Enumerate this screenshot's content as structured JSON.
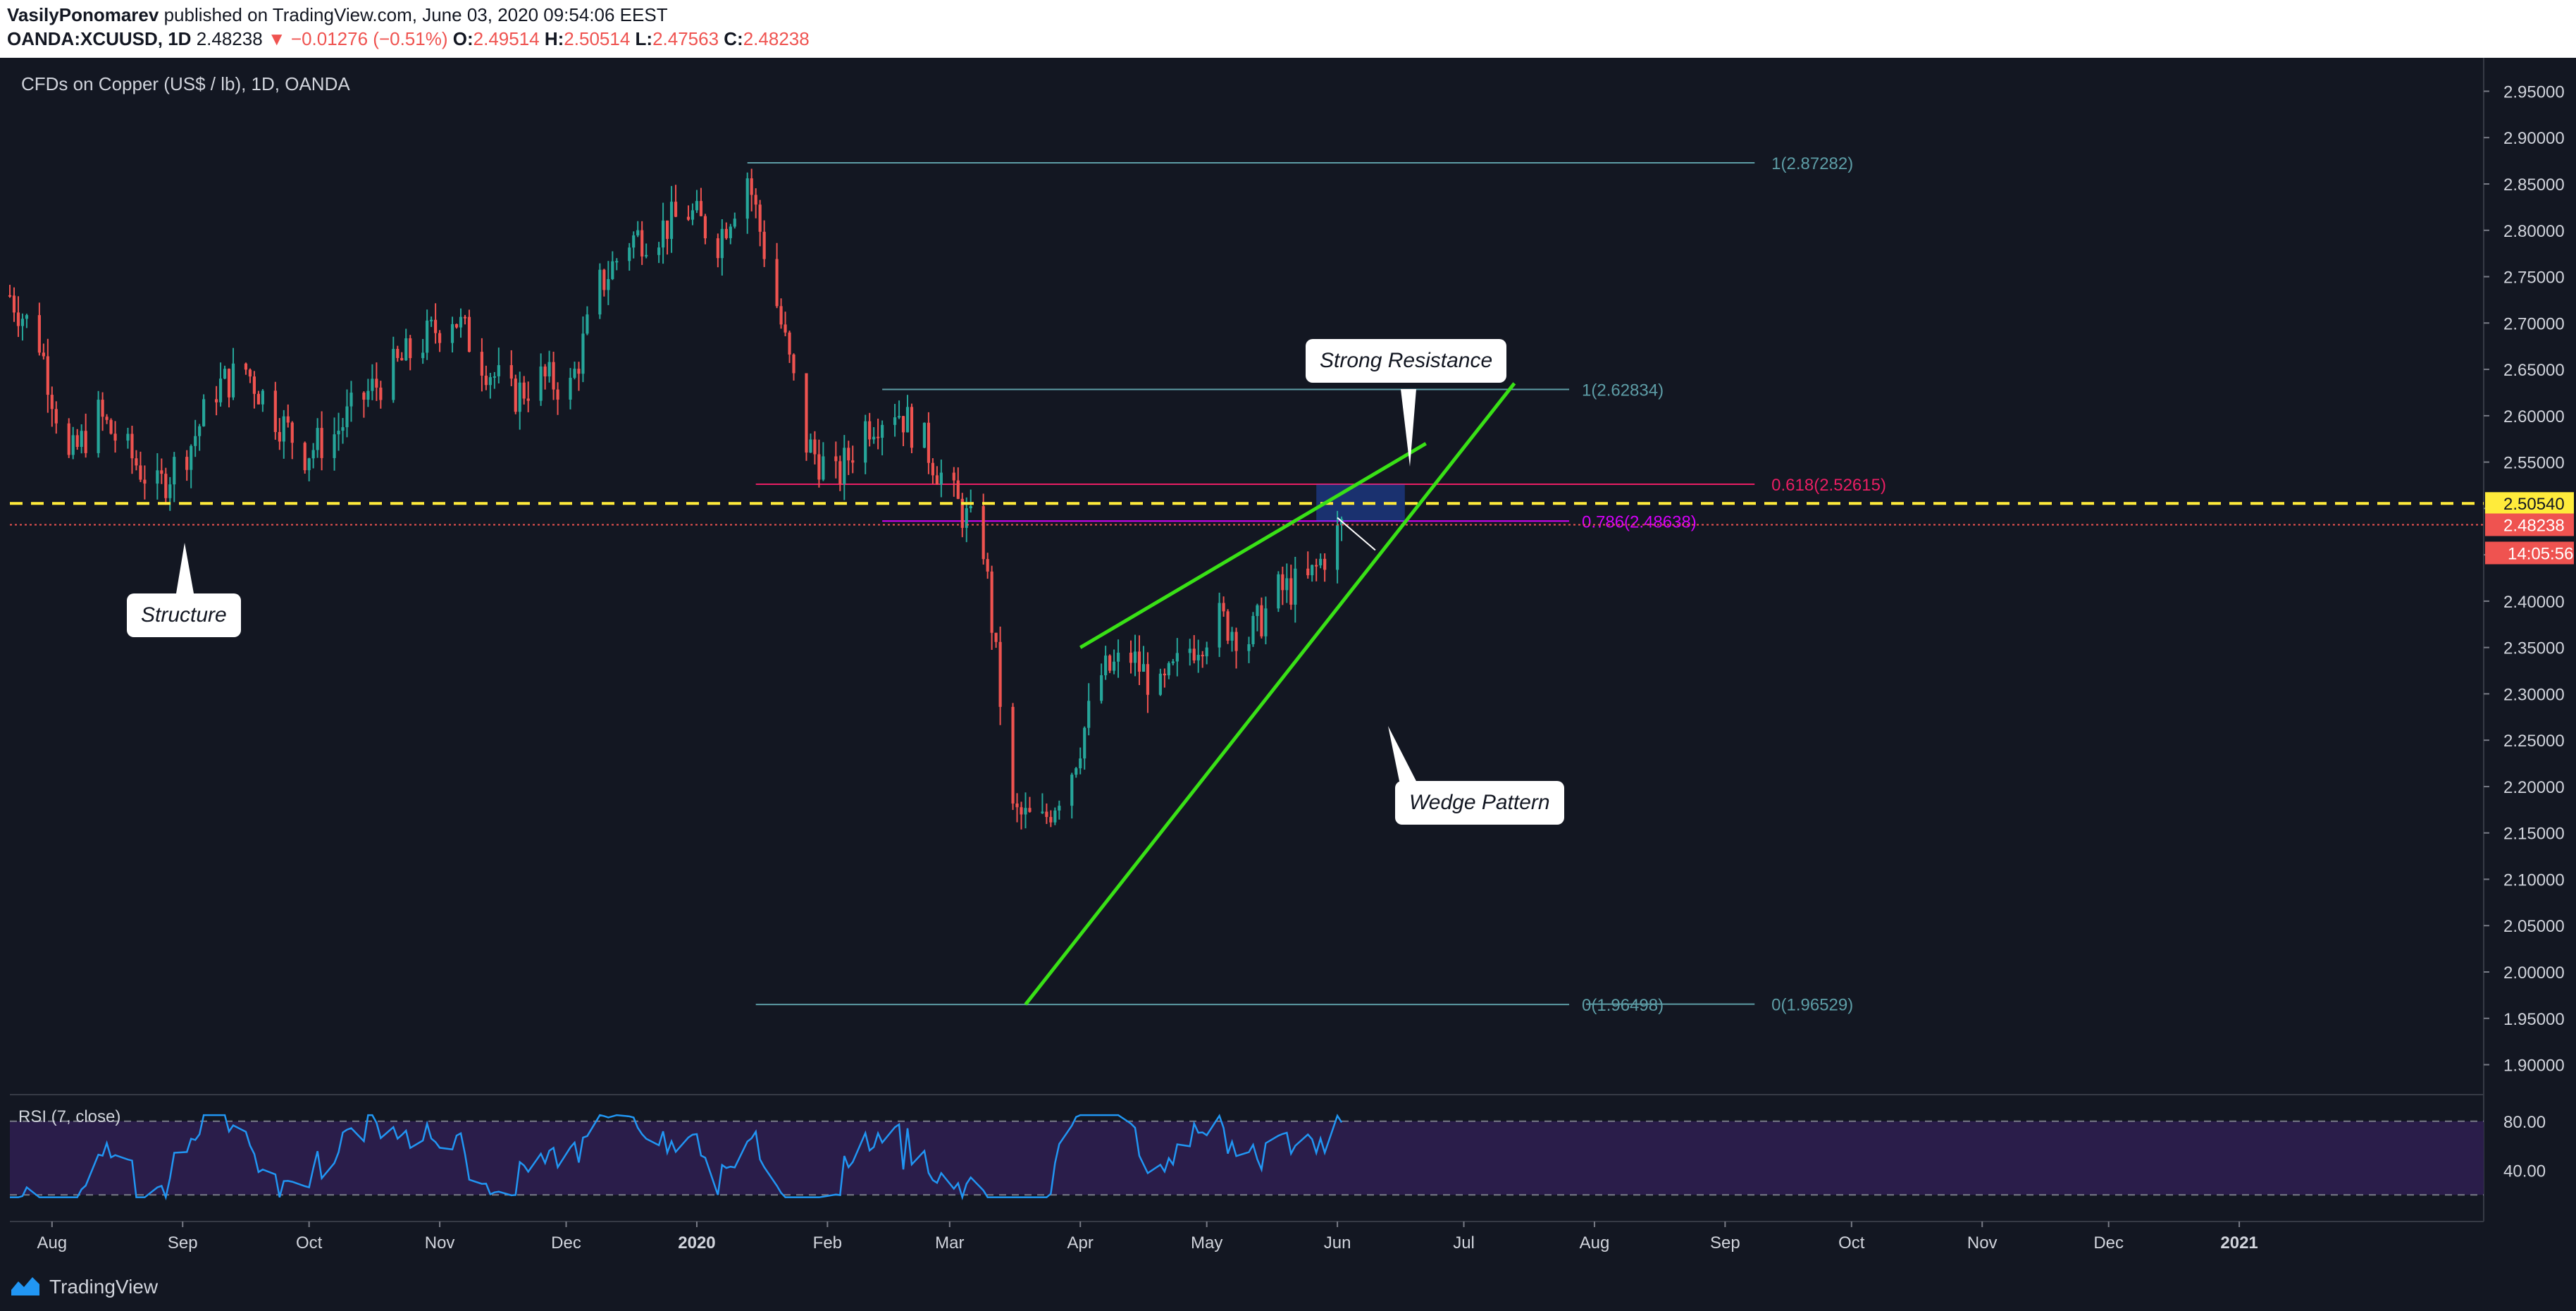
{
  "header": {
    "author": "VasilyPonomarev",
    "published_text": "published on TradingView.com, June 03, 2020 09:54:06 EEST",
    "symbol": "OANDA:XCUUSD, 1D",
    "last": "2.48238",
    "change": "−0.01276 (−0.51%)",
    "o_label": "O:",
    "o": "2.49514",
    "h_label": "H:",
    "h": "2.50514",
    "l_label": "L:",
    "l": "2.47563",
    "c_label": "C:",
    "c": "2.48238"
  },
  "chart_title": "CFDs on Copper (US$ / lb), 1D, OANDA",
  "colors": {
    "background": "#131722",
    "up": "#26a69a",
    "down": "#ef5350",
    "fib": "#5d9da6",
    "fib_618": "#e91e63",
    "fib_786": "#d500f9",
    "trendline": "#39e116",
    "support_dashed": "#ffeb3b",
    "rsi_line": "#2196f3",
    "rsi_fill": "#2a1d4a"
  },
  "price_scale": {
    "ticks": [
      "2.95000",
      "2.90000",
      "2.85000",
      "2.80000",
      "2.75000",
      "2.70000",
      "2.65000",
      "2.60000",
      "2.55000",
      "2.50000",
      "2.45000",
      "2.40000",
      "2.35000",
      "2.30000",
      "2.25000",
      "2.20000",
      "2.15000",
      "2.10000",
      "2.05000",
      "2.00000",
      "1.95000",
      "1.90000"
    ],
    "yellow_label": "2.50540",
    "current_label": "2.48238",
    "countdown": "14:05:56"
  },
  "time_axis": {
    "labels": [
      "Aug",
      "Sep",
      "Oct",
      "Nov",
      "Dec",
      "2020",
      "Feb",
      "Mar",
      "Apr",
      "May",
      "Jun",
      "Jul",
      "Aug",
      "Sep",
      "Oct",
      "Nov",
      "Dec",
      "2021"
    ]
  },
  "rsi": {
    "title": "RSI (7, close)",
    "ticks": [
      "80.00",
      "40.00"
    ],
    "upper": 80,
    "lower": 20
  },
  "annotations": {
    "strong_resistance": "Strong Resistance",
    "structure": "Structure",
    "wedge_pattern": "Wedge Pattern"
  },
  "fib_labels": {
    "top_1": "1(2.87282)",
    "second_1": "1(2.62834)",
    "f618": "0.618(2.52615)",
    "f786": "0.786(2.48638)",
    "bottom_0a": "0(1.96498)",
    "bottom_0b": "0(1.96529)"
  },
  "footer": {
    "brand": "TradingView"
  },
  "chart_data": {
    "type": "candlestick",
    "title": "CFDs on Copper (US$ / lb), 1D, OANDA",
    "ylim": [
      1.87,
      2.98
    ],
    "x_start": "2019-07-22",
    "x_end": "2021-02-28",
    "close_path": [
      [
        "2019-07-22",
        2.73
      ],
      [
        "2019-07-29",
        2.68
      ],
      [
        "2019-08-05",
        2.55
      ],
      [
        "2019-08-12",
        2.6
      ],
      [
        "2019-08-19",
        2.56
      ],
      [
        "2019-08-26",
        2.52
      ],
      [
        "2019-09-03",
        2.57
      ],
      [
        "2019-09-09",
        2.63
      ],
      [
        "2019-09-16",
        2.65
      ],
      [
        "2019-09-23",
        2.6
      ],
      [
        "2019-09-30",
        2.56
      ],
      [
        "2019-10-07",
        2.58
      ],
      [
        "2019-10-14",
        2.62
      ],
      [
        "2019-10-21",
        2.65
      ],
      [
        "2019-10-28",
        2.68
      ],
      [
        "2019-11-04",
        2.71
      ],
      [
        "2019-11-11",
        2.66
      ],
      [
        "2019-11-18",
        2.62
      ],
      [
        "2019-11-25",
        2.64
      ],
      [
        "2019-12-02",
        2.63
      ],
      [
        "2019-12-09",
        2.74
      ],
      [
        "2019-12-16",
        2.79
      ],
      [
        "2019-12-23",
        2.8
      ],
      [
        "2019-12-30",
        2.82
      ],
      [
        "2020-01-06",
        2.79
      ],
      [
        "2020-01-13",
        2.86
      ],
      [
        "2020-01-20",
        2.72
      ],
      [
        "2020-01-27",
        2.57
      ],
      [
        "2020-02-03",
        2.53
      ],
      [
        "2020-02-10",
        2.59
      ],
      [
        "2020-02-17",
        2.61
      ],
      [
        "2020-02-24",
        2.57
      ],
      [
        "2020-03-02",
        2.51
      ],
      [
        "2020-03-09",
        2.46
      ],
      [
        "2020-03-16",
        2.17
      ],
      [
        "2020-03-23",
        2.16
      ],
      [
        "2020-03-30",
        2.22
      ],
      [
        "2020-04-06",
        2.32
      ],
      [
        "2020-04-13",
        2.34
      ],
      [
        "2020-04-20",
        2.3
      ],
      [
        "2020-04-27",
        2.35
      ],
      [
        "2020-05-04",
        2.38
      ],
      [
        "2020-05-11",
        2.36
      ],
      [
        "2020-05-18",
        2.41
      ],
      [
        "2020-05-25",
        2.42
      ],
      [
        "2020-06-02",
        2.48
      ]
    ],
    "fib_levels": [
      {
        "label": "1(2.87282)",
        "value": 2.87282
      },
      {
        "label": "1(2.62834)",
        "value": 2.62834
      },
      {
        "label": "0.618(2.52615)",
        "value": 2.52615
      },
      {
        "label": "0.786(2.48638)",
        "value": 2.48638
      },
      {
        "label": "0(1.96498)",
        "value": 1.96498
      },
      {
        "label": "0(1.96529)",
        "value": 1.96529
      }
    ],
    "support_line": 2.5054,
    "current_price": 2.48238,
    "wedge_upper": [
      [
        "2020-04-01",
        2.35
      ],
      [
        "2020-06-22",
        2.57
      ]
    ],
    "wedge_lower": [
      [
        "2020-03-19",
        1.965
      ],
      [
        "2020-07-13",
        2.635
      ]
    ],
    "resistance_zone": {
      "from": "2020-05-27",
      "to": "2020-06-17",
      "low": 2.486,
      "high": 2.526
    },
    "rsi_ylim": [
      0,
      100
    ],
    "rsi_bands": [
      20,
      80
    ]
  }
}
